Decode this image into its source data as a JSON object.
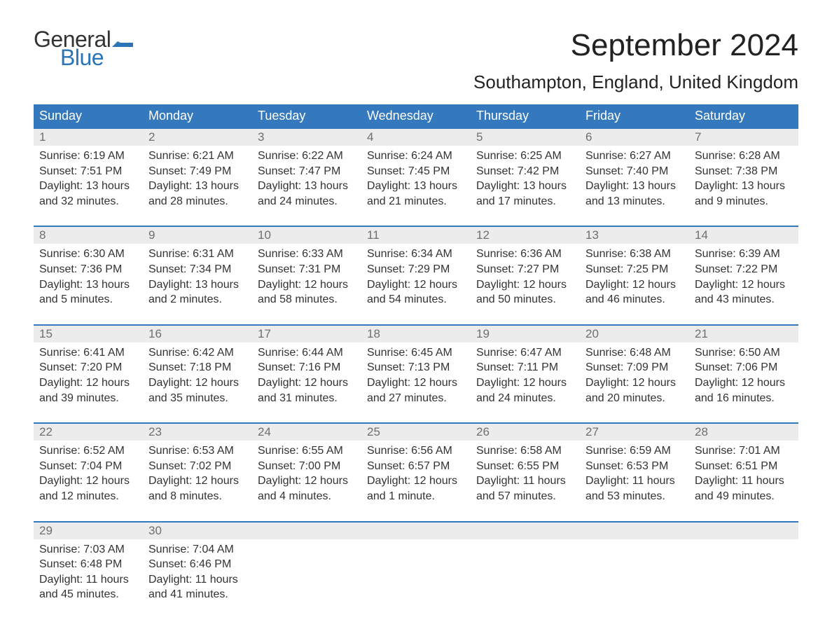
{
  "logo": {
    "text_general": "General",
    "text_blue": "Blue",
    "flag_color": "#2b74b8"
  },
  "title": "September 2024",
  "subtitle": "Southampton, England, United Kingdom",
  "colors": {
    "header_bg": "#3478bd",
    "header_text": "#ffffff",
    "band_bg": "#ececec",
    "band_border": "#3478bd",
    "daynum_text": "#6f6f6f",
    "body_text": "#333333",
    "background": "#ffffff"
  },
  "fonts": {
    "title_size": 44,
    "subtitle_size": 26,
    "weekday_size": 18,
    "daynum_size": 17,
    "content_size": 16
  },
  "weekdays": [
    "Sunday",
    "Monday",
    "Tuesday",
    "Wednesday",
    "Thursday",
    "Friday",
    "Saturday"
  ],
  "weeks": [
    [
      {
        "day": "1",
        "sunrise": "Sunrise: 6:19 AM",
        "sunset": "Sunset: 7:51 PM",
        "daylight": "Daylight: 13 hours and 32 minutes."
      },
      {
        "day": "2",
        "sunrise": "Sunrise: 6:21 AM",
        "sunset": "Sunset: 7:49 PM",
        "daylight": "Daylight: 13 hours and 28 minutes."
      },
      {
        "day": "3",
        "sunrise": "Sunrise: 6:22 AM",
        "sunset": "Sunset: 7:47 PM",
        "daylight": "Daylight: 13 hours and 24 minutes."
      },
      {
        "day": "4",
        "sunrise": "Sunrise: 6:24 AM",
        "sunset": "Sunset: 7:45 PM",
        "daylight": "Daylight: 13 hours and 21 minutes."
      },
      {
        "day": "5",
        "sunrise": "Sunrise: 6:25 AM",
        "sunset": "Sunset: 7:42 PM",
        "daylight": "Daylight: 13 hours and 17 minutes."
      },
      {
        "day": "6",
        "sunrise": "Sunrise: 6:27 AM",
        "sunset": "Sunset: 7:40 PM",
        "daylight": "Daylight: 13 hours and 13 minutes."
      },
      {
        "day": "7",
        "sunrise": "Sunrise: 6:28 AM",
        "sunset": "Sunset: 7:38 PM",
        "daylight": "Daylight: 13 hours and 9 minutes."
      }
    ],
    [
      {
        "day": "8",
        "sunrise": "Sunrise: 6:30 AM",
        "sunset": "Sunset: 7:36 PM",
        "daylight": "Daylight: 13 hours and 5 minutes."
      },
      {
        "day": "9",
        "sunrise": "Sunrise: 6:31 AM",
        "sunset": "Sunset: 7:34 PM",
        "daylight": "Daylight: 13 hours and 2 minutes."
      },
      {
        "day": "10",
        "sunrise": "Sunrise: 6:33 AM",
        "sunset": "Sunset: 7:31 PM",
        "daylight": "Daylight: 12 hours and 58 minutes."
      },
      {
        "day": "11",
        "sunrise": "Sunrise: 6:34 AM",
        "sunset": "Sunset: 7:29 PM",
        "daylight": "Daylight: 12 hours and 54 minutes."
      },
      {
        "day": "12",
        "sunrise": "Sunrise: 6:36 AM",
        "sunset": "Sunset: 7:27 PM",
        "daylight": "Daylight: 12 hours and 50 minutes."
      },
      {
        "day": "13",
        "sunrise": "Sunrise: 6:38 AM",
        "sunset": "Sunset: 7:25 PM",
        "daylight": "Daylight: 12 hours and 46 minutes."
      },
      {
        "day": "14",
        "sunrise": "Sunrise: 6:39 AM",
        "sunset": "Sunset: 7:22 PM",
        "daylight": "Daylight: 12 hours and 43 minutes."
      }
    ],
    [
      {
        "day": "15",
        "sunrise": "Sunrise: 6:41 AM",
        "sunset": "Sunset: 7:20 PM",
        "daylight": "Daylight: 12 hours and 39 minutes."
      },
      {
        "day": "16",
        "sunrise": "Sunrise: 6:42 AM",
        "sunset": "Sunset: 7:18 PM",
        "daylight": "Daylight: 12 hours and 35 minutes."
      },
      {
        "day": "17",
        "sunrise": "Sunrise: 6:44 AM",
        "sunset": "Sunset: 7:16 PM",
        "daylight": "Daylight: 12 hours and 31 minutes."
      },
      {
        "day": "18",
        "sunrise": "Sunrise: 6:45 AM",
        "sunset": "Sunset: 7:13 PM",
        "daylight": "Daylight: 12 hours and 27 minutes."
      },
      {
        "day": "19",
        "sunrise": "Sunrise: 6:47 AM",
        "sunset": "Sunset: 7:11 PM",
        "daylight": "Daylight: 12 hours and 24 minutes."
      },
      {
        "day": "20",
        "sunrise": "Sunrise: 6:48 AM",
        "sunset": "Sunset: 7:09 PM",
        "daylight": "Daylight: 12 hours and 20 minutes."
      },
      {
        "day": "21",
        "sunrise": "Sunrise: 6:50 AM",
        "sunset": "Sunset: 7:06 PM",
        "daylight": "Daylight: 12 hours and 16 minutes."
      }
    ],
    [
      {
        "day": "22",
        "sunrise": "Sunrise: 6:52 AM",
        "sunset": "Sunset: 7:04 PM",
        "daylight": "Daylight: 12 hours and 12 minutes."
      },
      {
        "day": "23",
        "sunrise": "Sunrise: 6:53 AM",
        "sunset": "Sunset: 7:02 PM",
        "daylight": "Daylight: 12 hours and 8 minutes."
      },
      {
        "day": "24",
        "sunrise": "Sunrise: 6:55 AM",
        "sunset": "Sunset: 7:00 PM",
        "daylight": "Daylight: 12 hours and 4 minutes."
      },
      {
        "day": "25",
        "sunrise": "Sunrise: 6:56 AM",
        "sunset": "Sunset: 6:57 PM",
        "daylight": "Daylight: 12 hours and 1 minute."
      },
      {
        "day": "26",
        "sunrise": "Sunrise: 6:58 AM",
        "sunset": "Sunset: 6:55 PM",
        "daylight": "Daylight: 11 hours and 57 minutes."
      },
      {
        "day": "27",
        "sunrise": "Sunrise: 6:59 AM",
        "sunset": "Sunset: 6:53 PM",
        "daylight": "Daylight: 11 hours and 53 minutes."
      },
      {
        "day": "28",
        "sunrise": "Sunrise: 7:01 AM",
        "sunset": "Sunset: 6:51 PM",
        "daylight": "Daylight: 11 hours and 49 minutes."
      }
    ],
    [
      {
        "day": "29",
        "sunrise": "Sunrise: 7:03 AM",
        "sunset": "Sunset: 6:48 PM",
        "daylight": "Daylight: 11 hours and 45 minutes."
      },
      {
        "day": "30",
        "sunrise": "Sunrise: 7:04 AM",
        "sunset": "Sunset: 6:46 PM",
        "daylight": "Daylight: 11 hours and 41 minutes."
      },
      null,
      null,
      null,
      null,
      null
    ]
  ]
}
